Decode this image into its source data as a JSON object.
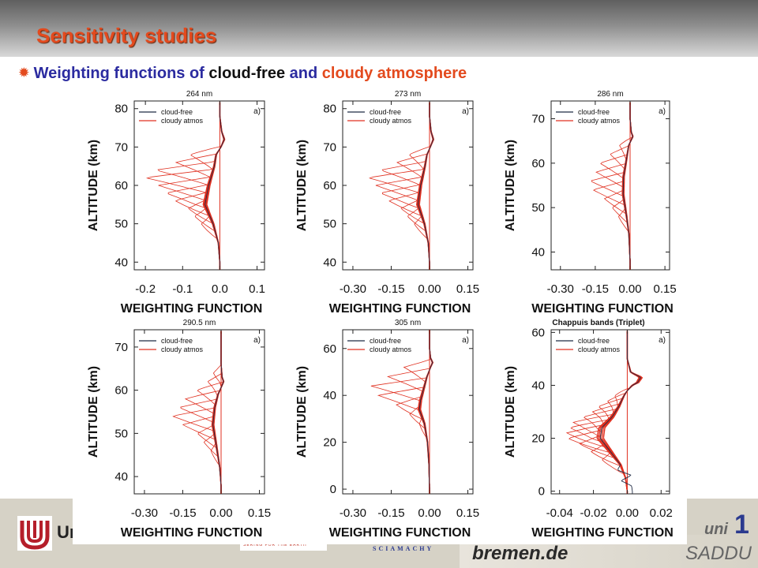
{
  "header": {
    "title": "Sensitivity studies",
    "subtitle_parts": [
      "Weighting functions of ",
      "cloud-free",
      " and ",
      "cloudy atmosphere"
    ],
    "bullet_icon": "sun-bullet-icon"
  },
  "footer": {
    "university_fragment": "Ur",
    "domain_text": "bremen.de",
    "uni_text": "uni",
    "number_text": "1",
    "saddu_text": "SADDU",
    "sciamachy_text": "SCIAMACHY",
    "strip_text": "SERING FOR THE EARTH"
  },
  "colors": {
    "title_accent": "#e34a1e",
    "subtitle_blue": "#2b2ba0",
    "cloud_free": "#1f2a44",
    "cloudy": "#e03020",
    "footer_bg": "#d6d2c6"
  },
  "chart_data": [
    {
      "type": "line",
      "title": "264 nm",
      "panel_label": "a)",
      "xlabel": "WEIGHTING FUNCTION",
      "ylabel": "ALTITUDE (km)",
      "xlim": [
        -0.23,
        0.12
      ],
      "ylim": [
        38,
        82
      ],
      "xticks": [
        -0.2,
        -0.1,
        0.0,
        0.1
      ],
      "xtick_labels": [
        "-0.2",
        "-0.1",
        "0.0",
        "0.1"
      ],
      "yticks": [
        40,
        50,
        60,
        70,
        80
      ],
      "ytick_labels": [
        "40",
        "50",
        "60",
        "70",
        "80"
      ],
      "legend": [
        "cloud-free",
        "cloudy atmos"
      ],
      "legend_position": "top-left",
      "peak_altitudes": [
        50,
        52,
        54,
        56,
        58,
        60,
        62,
        64,
        66,
        68
      ],
      "peak_values": [
        -0.05,
        -0.07,
        -0.09,
        -0.12,
        -0.15,
        -0.18,
        -0.2,
        -0.18,
        -0.13,
        -0.08
      ],
      "envelope": [
        [
          40,
          0.0
        ],
        [
          45,
          -0.004
        ],
        [
          50,
          -0.018
        ],
        [
          55,
          -0.04
        ],
        [
          60,
          -0.03
        ],
        [
          65,
          -0.015
        ],
        [
          68,
          -0.01
        ],
        [
          70,
          0.003
        ],
        [
          72,
          0.012
        ],
        [
          74,
          0.005
        ],
        [
          78,
          0.0
        ],
        [
          82,
          0.0
        ]
      ],
      "series": [
        {
          "name": "cloud-free"
        },
        {
          "name": "cloudy atmos"
        }
      ]
    },
    {
      "type": "line",
      "title": "273 nm",
      "panel_label": "a)",
      "xlabel": "WEIGHTING FUNCTION",
      "ylabel": "ALTITUDE (km)",
      "xlim": [
        -0.34,
        0.17
      ],
      "ylim": [
        38,
        82
      ],
      "xticks": [
        -0.3,
        -0.15,
        0.0,
        0.15
      ],
      "xtick_labels": [
        "-0.30",
        "-0.15",
        "0.00",
        "0.15"
      ],
      "yticks": [
        40,
        50,
        60,
        70,
        80
      ],
      "ytick_labels": [
        "40",
        "50",
        "60",
        "70",
        "80"
      ],
      "legend": [
        "cloud-free",
        "cloudy atmos"
      ],
      "legend_position": "top-left",
      "peak_altitudes": [
        50,
        52,
        54,
        56,
        58,
        60,
        62,
        64,
        66,
        68
      ],
      "peak_values": [
        -0.06,
        -0.09,
        -0.12,
        -0.16,
        -0.2,
        -0.23,
        -0.24,
        -0.2,
        -0.14,
        -0.08
      ],
      "envelope": [
        [
          40,
          0.0
        ],
        [
          45,
          -0.005
        ],
        [
          50,
          -0.02
        ],
        [
          55,
          -0.045
        ],
        [
          60,
          -0.035
        ],
        [
          65,
          -0.018
        ],
        [
          68,
          -0.01
        ],
        [
          70,
          0.003
        ],
        [
          72,
          0.015
        ],
        [
          74,
          0.006
        ],
        [
          78,
          0.0
        ],
        [
          82,
          0.0
        ]
      ],
      "series": [
        {
          "name": "cloud-free"
        },
        {
          "name": "cloudy atmos"
        }
      ]
    },
    {
      "type": "line",
      "title": "286 nm",
      "panel_label": "a)",
      "xlabel": "WEIGHTING FUNCTION",
      "ylabel": "ALTITUDE (km)",
      "xlim": [
        -0.34,
        0.17
      ],
      "ylim": [
        36,
        74
      ],
      "xticks": [
        -0.3,
        -0.15,
        0.0,
        0.15
      ],
      "xtick_labels": [
        "-0.30",
        "-0.15",
        "0.00",
        "0.15"
      ],
      "yticks": [
        40,
        50,
        60,
        70
      ],
      "ytick_labels": [
        "40",
        "50",
        "60",
        "70"
      ],
      "legend": [
        "cloud-free",
        "cloudy atmos"
      ],
      "legend_position": "top-left",
      "peak_altitudes": [
        48,
        50,
        52,
        54,
        56,
        58,
        60,
        62,
        64
      ],
      "peak_values": [
        -0.05,
        -0.08,
        -0.12,
        -0.16,
        -0.18,
        -0.16,
        -0.13,
        -0.09,
        -0.05
      ],
      "envelope": [
        [
          38,
          0.0
        ],
        [
          44,
          -0.005
        ],
        [
          48,
          -0.015
        ],
        [
          53,
          -0.03
        ],
        [
          57,
          -0.028
        ],
        [
          61,
          -0.015
        ],
        [
          64,
          -0.006
        ],
        [
          65,
          0.003
        ],
        [
          66,
          0.012
        ],
        [
          67,
          0.005
        ],
        [
          70,
          0.0
        ],
        [
          74,
          0.0
        ]
      ],
      "series": [
        {
          "name": "cloud-free"
        },
        {
          "name": "cloudy atmos"
        }
      ]
    },
    {
      "type": "line",
      "title": "290.5 nm",
      "panel_label": "a)",
      "xlabel": "WEIGHTING FUNCTION",
      "ylabel": "ALTITUDE (km)",
      "xlim": [
        -0.34,
        0.17
      ],
      "ylim": [
        36,
        74
      ],
      "xticks": [
        -0.3,
        -0.15,
        0.0,
        0.15
      ],
      "xtick_labels": [
        "-0.30",
        "-0.15",
        "0.00",
        "0.15"
      ],
      "yticks": [
        40,
        50,
        60,
        70
      ],
      "ytick_labels": [
        "40",
        "50",
        "60",
        "70"
      ],
      "legend": [
        "cloud-free",
        "cloudy atmos"
      ],
      "legend_position": "top-left",
      "peak_altitudes": [
        46,
        48,
        50,
        52,
        54,
        56,
        58,
        60,
        62,
        64
      ],
      "peak_values": [
        -0.04,
        -0.07,
        -0.1,
        -0.15,
        -0.2,
        -0.18,
        -0.14,
        -0.1,
        -0.06,
        -0.03
      ],
      "envelope": [
        [
          38,
          0.0
        ],
        [
          42,
          -0.005
        ],
        [
          47,
          -0.018
        ],
        [
          52,
          -0.032
        ],
        [
          56,
          -0.025
        ],
        [
          59,
          -0.012
        ],
        [
          61,
          0.003
        ],
        [
          62,
          0.01
        ],
        [
          63,
          0.004
        ],
        [
          66,
          0.0
        ],
        [
          74,
          0.0
        ]
      ],
      "series": [
        {
          "name": "cloud-free"
        },
        {
          "name": "cloudy atmos"
        }
      ]
    },
    {
      "type": "line",
      "title": "305 nm",
      "panel_label": "a)",
      "xlabel": "WEIGHTING FUNCTION",
      "ylabel": "ALTITUDE (km)",
      "xlim": [
        -0.34,
        0.17
      ],
      "ylim": [
        -2,
        68
      ],
      "xticks": [
        -0.3,
        -0.15,
        0.0,
        0.15
      ],
      "xtick_labels": [
        "-0.30",
        "-0.15",
        "0.00",
        "0.15"
      ],
      "yticks": [
        0,
        20,
        40,
        60
      ],
      "ytick_labels": [
        "0",
        "20",
        "40",
        "60"
      ],
      "legend": [
        "cloud-free",
        "cloudy atmos"
      ],
      "legend_position": "top-left",
      "peak_altitudes": [
        28,
        32,
        36,
        40,
        44,
        48,
        52
      ],
      "peak_values": [
        -0.04,
        -0.08,
        -0.14,
        -0.2,
        -0.24,
        -0.18,
        -0.1
      ],
      "envelope": [
        [
          0,
          0.0
        ],
        [
          10,
          -0.002
        ],
        [
          20,
          -0.008
        ],
        [
          28,
          -0.02
        ],
        [
          34,
          -0.04
        ],
        [
          38,
          -0.035
        ],
        [
          44,
          -0.02
        ],
        [
          48,
          -0.01
        ],
        [
          52,
          0.004
        ],
        [
          54,
          0.012
        ],
        [
          56,
          0.004
        ],
        [
          60,
          0.0
        ],
        [
          68,
          0.0
        ]
      ],
      "series": [
        {
          "name": "cloud-free"
        },
        {
          "name": "cloudy atmos"
        }
      ]
    },
    {
      "type": "line",
      "title": "Chappuis bands (Triplet)",
      "panel_label": "a)",
      "xlabel": "WEIGHTING FUNCTION",
      "ylabel": "ALTITUDE (km)",
      "xlim": [
        -0.045,
        0.025
      ],
      "ylim": [
        -1,
        61
      ],
      "xticks": [
        -0.04,
        -0.02,
        0.0,
        0.02
      ],
      "xtick_labels": [
        "-0.04",
        "-0.02",
        "0.00",
        "0.02"
      ],
      "yticks": [
        0,
        20,
        40,
        60
      ],
      "ytick_labels": [
        "0",
        "20",
        "40",
        "60"
      ],
      "legend": [
        "cloud-free",
        "cloudy atmos"
      ],
      "legend_position": "top-left",
      "peak_altitudes": [
        12,
        15,
        18,
        20,
        22,
        24,
        26,
        28,
        30,
        32,
        34,
        36
      ],
      "peak_values": [
        -0.015,
        -0.022,
        -0.03,
        -0.035,
        -0.037,
        -0.036,
        -0.032,
        -0.027,
        -0.022,
        -0.017,
        -0.012,
        -0.008
      ],
      "envelope": [
        [
          0,
          0.0
        ],
        [
          5,
          -0.001
        ],
        [
          10,
          -0.004
        ],
        [
          15,
          -0.01
        ],
        [
          20,
          -0.016
        ],
        [
          24,
          -0.015
        ],
        [
          28,
          -0.009
        ],
        [
          32,
          -0.005
        ],
        [
          36,
          -0.002
        ],
        [
          38,
          0.0
        ],
        [
          40,
          0.003
        ],
        [
          41,
          0.006
        ],
        [
          43,
          0.008
        ],
        [
          45,
          0.002
        ],
        [
          50,
          0.0
        ],
        [
          61,
          0.0
        ]
      ],
      "cloudfree_offsets": [
        [
          2,
          0.003
        ],
        [
          4,
          -0.003
        ],
        [
          6,
          0.004
        ],
        [
          8,
          -0.003
        ],
        [
          10,
          0.0
        ]
      ],
      "series": [
        {
          "name": "cloud-free"
        },
        {
          "name": "cloudy atmos"
        }
      ]
    }
  ]
}
